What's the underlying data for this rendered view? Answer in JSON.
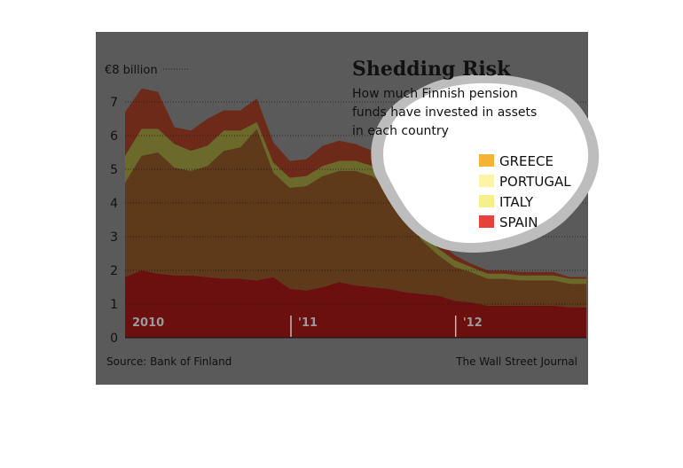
{
  "chart_data": {
    "type": "area",
    "title": "Shedding Risk",
    "subtitle_lines": [
      "How much Finnish pension",
      "funds have invested in assets",
      "in each country"
    ],
    "ylabel": "",
    "y_top_label": "€8 billion",
    "ylim": [
      0,
      8
    ],
    "y_ticks": [
      "0",
      "1",
      "2",
      "3",
      "4",
      "5",
      "6",
      "7"
    ],
    "x_ticks": [
      "2010",
      "'11",
      "'12"
    ],
    "legend_placement": "top-right",
    "source": "Source: Bank of Finland",
    "credit": "The Wall Street Journal",
    "x": [
      0,
      1,
      2,
      3,
      4,
      5,
      6,
      7,
      8,
      9,
      10,
      11,
      12,
      13,
      14,
      15,
      16,
      17,
      18,
      19,
      20,
      21,
      22,
      23,
      24,
      25,
      26,
      27,
      28
    ],
    "series": [
      {
        "name": "SPAIN",
        "color": "#e8403a",
        "values": [
          1.8,
          2.0,
          1.9,
          1.85,
          1.85,
          1.8,
          1.75,
          1.75,
          1.7,
          1.8,
          1.45,
          1.4,
          1.5,
          1.65,
          1.55,
          1.5,
          1.45,
          1.35,
          1.3,
          1.25,
          1.1,
          1.05,
          0.95,
          0.95,
          0.95,
          0.95,
          0.95,
          0.9,
          0.9
        ]
      },
      {
        "name": "ITALY",
        "color": "#f5f08a",
        "values": [
          2.8,
          3.4,
          3.6,
          3.2,
          3.1,
          3.3,
          3.8,
          3.9,
          4.5,
          3.1,
          3.0,
          3.1,
          3.3,
          3.3,
          3.4,
          3.3,
          3.0,
          2.4,
          1.6,
          1.2,
          1.0,
          0.9,
          0.8,
          0.8,
          0.75,
          0.75,
          0.75,
          0.7,
          0.7
        ]
      },
      {
        "name": "PORTUGAL",
        "color": "#fcf4a6",
        "values": [
          0.8,
          0.8,
          0.7,
          0.7,
          0.6,
          0.6,
          0.6,
          0.5,
          0.2,
          0.3,
          0.3,
          0.3,
          0.3,
          0.3,
          0.3,
          0.3,
          0.3,
          0.3,
          0.2,
          0.2,
          0.2,
          0.15,
          0.15,
          0.15,
          0.15,
          0.15,
          0.15,
          0.15,
          0.15
        ]
      },
      {
        "name": "GREECE",
        "color": "#f5b335",
        "values": [
          1.3,
          1.2,
          1.1,
          0.5,
          0.6,
          0.8,
          0.6,
          0.6,
          0.7,
          0.6,
          0.5,
          0.5,
          0.6,
          0.6,
          0.5,
          0.45,
          0.45,
          0.35,
          0.3,
          0.25,
          0.15,
          0.1,
          0.1,
          0.1,
          0.1,
          0.1,
          0.1,
          0.05,
          0.05
        ]
      }
    ]
  }
}
